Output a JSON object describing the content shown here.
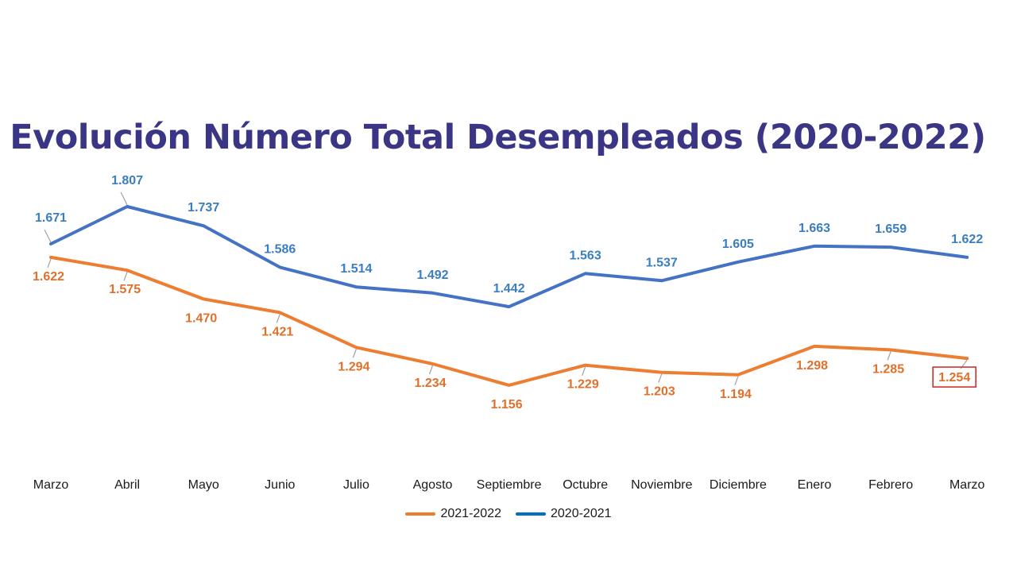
{
  "chart_data": {
    "type": "line",
    "title": "Evolución Número Total Desempleados (2020-2022)",
    "categories": [
      "Marzo",
      "Abril",
      "Mayo",
      "Junio",
      "Julio",
      "Agosto",
      "Septiembre",
      "Octubre",
      "Noviembre",
      "Diciembre",
      "Enero",
      "Febrero",
      "Marzo"
    ],
    "series": [
      {
        "name": "2020-2021",
        "color": "#4472c4",
        "label_color": "#3a7ebf",
        "values": [
          1.671,
          1.807,
          1.737,
          1.586,
          1.514,
          1.492,
          1.442,
          1.563,
          1.537,
          1.605,
          1.663,
          1.659,
          1.622
        ],
        "labels": [
          "1.671",
          "1.807",
          "1.737",
          "1.586",
          "1.514",
          "1.492",
          "1.442",
          "1.563",
          "1.537",
          "1.605",
          "1.663",
          "1.659",
          "1.622"
        ]
      },
      {
        "name": "2021-2022",
        "color": "#ed7d31",
        "label_color": "#e0702a",
        "values": [
          1.622,
          1.575,
          1.47,
          1.421,
          1.294,
          1.234,
          1.156,
          1.229,
          1.203,
          1.194,
          1.298,
          1.285,
          1.254
        ],
        "labels": [
          "1.622",
          "1.575",
          "1.470",
          "1.421",
          "1.294",
          "1.234",
          "1.156",
          "1.229",
          "1.203",
          "1.194",
          "1.298",
          "1.285",
          "1.254"
        ]
      }
    ],
    "highlight": {
      "series": "2021-2022",
      "index": 12,
      "box_color": "#d0312d"
    },
    "legend": {
      "placement": "bottom",
      "order": [
        "2021-2022",
        "2020-2021"
      ]
    },
    "grid": false
  }
}
